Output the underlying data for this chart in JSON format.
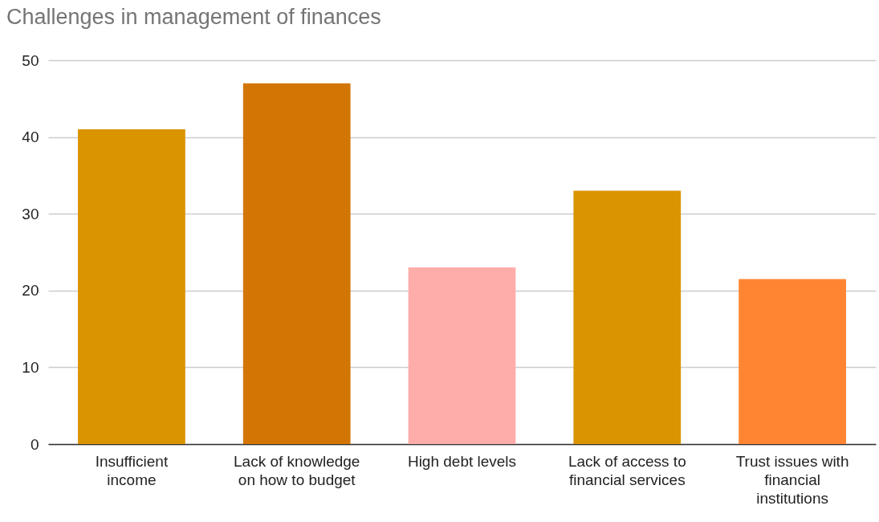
{
  "chart_data": {
    "type": "bar",
    "title": "Challenges in management of finances",
    "categories": [
      "Insufficient income",
      "Lack of knowledge on how to budget",
      "High debt levels",
      "Lack of access to financial services",
      "Trust issues with financial institutions"
    ],
    "values": [
      41,
      47,
      23,
      33,
      21.5
    ],
    "colors": [
      "#d99400",
      "#d37505",
      "#ffadaa",
      "#d99400",
      "#ff8533"
    ],
    "ylim": [
      0,
      50
    ],
    "yticks": [
      0,
      10,
      20,
      30,
      40,
      50
    ],
    "grid": "y"
  }
}
